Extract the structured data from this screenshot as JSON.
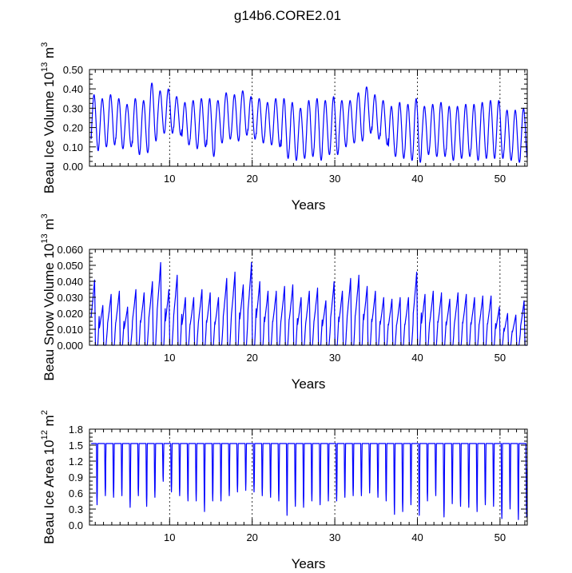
{
  "title": "g14b6.CORE2.01",
  "chart_data": [
    {
      "type": "line",
      "name": "ice-volume",
      "title": "",
      "xlabel": "Years",
      "ylabel": "Beau Ice Volume 10",
      "ylabel_exponent": "13",
      "ylabel_unit": "m",
      "ylabel_unit_exponent": "3",
      "xlim": [
        0.3,
        53.3
      ],
      "ylim": [
        0,
        0.5
      ],
      "xticks": [
        10,
        20,
        30,
        40,
        50
      ],
      "xtick_labels": [
        "10",
        "20",
        "30",
        "40",
        "50"
      ],
      "yticks": [
        0,
        0.1,
        0.2,
        0.3,
        0.4,
        0.5
      ],
      "ytick_labels": [
        "0.00",
        "0.10",
        "0.20",
        "0.30",
        "0.40",
        "0.50"
      ],
      "vertical_dashed_lines": [
        10,
        20,
        30,
        40,
        50
      ],
      "series_color": "#0000ff",
      "seasonal_shape": "volume",
      "annual_max": [
        0.37,
        0.35,
        0.37,
        0.35,
        0.32,
        0.35,
        0.34,
        0.43,
        0.39,
        0.4,
        0.36,
        0.33,
        0.34,
        0.35,
        0.35,
        0.34,
        0.38,
        0.37,
        0.39,
        0.36,
        0.35,
        0.33,
        0.35,
        0.35,
        0.33,
        0.3,
        0.34,
        0.35,
        0.34,
        0.36,
        0.34,
        0.34,
        0.38,
        0.41,
        0.37,
        0.34,
        0.31,
        0.33,
        0.32,
        0.35,
        0.31,
        0.32,
        0.33,
        0.31,
        0.31,
        0.32,
        0.32,
        0.33,
        0.34,
        0.34,
        0.29,
        0.29,
        0.3
      ],
      "annual_min": [
        0.08,
        0.1,
        0.11,
        0.09,
        0.1,
        0.06,
        0.07,
        0.13,
        0.17,
        0.17,
        0.16,
        0.11,
        0.09,
        0.1,
        0.05,
        0.12,
        0.14,
        0.13,
        0.16,
        0.14,
        0.12,
        0.11,
        0.1,
        0.04,
        0.03,
        0.04,
        0.05,
        0.03,
        0.06,
        0.06,
        0.1,
        0.12,
        0.13,
        0.17,
        0.14,
        0.11,
        0.05,
        0.04,
        0.03,
        0.02,
        0.06,
        0.05,
        0.05,
        0.03,
        0.04,
        0.05,
        0.03,
        0.04,
        0.04,
        0.04,
        0.03,
        0.02,
        0.03
      ]
    },
    {
      "type": "line",
      "name": "snow-volume",
      "title": "",
      "xlabel": "Years",
      "ylabel": "Beau Snow Volume 10",
      "ylabel_exponent": "13",
      "ylabel_unit": "m",
      "ylabel_unit_exponent": "3",
      "xlim": [
        0.3,
        53.3
      ],
      "ylim": [
        0,
        0.06
      ],
      "xticks": [
        10,
        20,
        30,
        40,
        50
      ],
      "xtick_labels": [
        "10",
        "20",
        "30",
        "40",
        "50"
      ],
      "yticks": [
        0,
        0.01,
        0.02,
        0.03,
        0.04,
        0.05,
        0.06
      ],
      "ytick_labels": [
        "0.000",
        "0.010",
        "0.020",
        "0.030",
        "0.040",
        "0.050",
        "0.060"
      ],
      "vertical_dashed_lines": [
        10,
        20,
        30,
        40,
        50
      ],
      "series_color": "#0000ff",
      "seasonal_shape": "snow",
      "annual_max": [
        0.041,
        0.025,
        0.032,
        0.034,
        0.024,
        0.035,
        0.033,
        0.04,
        0.052,
        0.035,
        0.044,
        0.03,
        0.03,
        0.035,
        0.033,
        0.03,
        0.042,
        0.046,
        0.038,
        0.052,
        0.04,
        0.034,
        0.034,
        0.037,
        0.038,
        0.03,
        0.034,
        0.036,
        0.028,
        0.04,
        0.034,
        0.042,
        0.044,
        0.037,
        0.034,
        0.03,
        0.029,
        0.03,
        0.03,
        0.046,
        0.032,
        0.034,
        0.033,
        0.029,
        0.033,
        0.032,
        0.03,
        0.031,
        0.031,
        0.024,
        0.02,
        0.019,
        0.028
      ],
      "annual_min": [
        0,
        0,
        0,
        0,
        0,
        0,
        0,
        0,
        0,
        0,
        0,
        0,
        0,
        0,
        0,
        0,
        0,
        0,
        0,
        0,
        0,
        0,
        0,
        0,
        0,
        0,
        0,
        0,
        0,
        0,
        0,
        0,
        0,
        0,
        0,
        0,
        0,
        0,
        0,
        0,
        0,
        0,
        0,
        0,
        0,
        0,
        0,
        0,
        0,
        0,
        0,
        0,
        0
      ]
    },
    {
      "type": "line",
      "name": "ice-area",
      "title": "",
      "xlabel": "Years",
      "ylabel": "Beau Ice Area 10",
      "ylabel_exponent": "12",
      "ylabel_unit": "m",
      "ylabel_unit_exponent": "2",
      "xlim": [
        0.3,
        53.3
      ],
      "ylim": [
        0,
        1.8
      ],
      "xticks": [
        10,
        20,
        30,
        40,
        50
      ],
      "xtick_labels": [
        "10",
        "20",
        "30",
        "40",
        "50"
      ],
      "yticks": [
        0,
        0.3,
        0.6,
        0.9,
        1.2,
        1.5,
        1.8
      ],
      "ytick_labels": [
        "0.0",
        "0.3",
        "0.6",
        "0.9",
        "1.2",
        "1.5",
        "1.8"
      ],
      "vertical_dashed_lines": [
        10,
        20,
        30,
        40,
        50
      ],
      "series_color": "#0000ff",
      "seasonal_shape": "area",
      "annual_max": [
        1.53,
        1.53,
        1.53,
        1.53,
        1.53,
        1.53,
        1.53,
        1.53,
        1.53,
        1.53,
        1.53,
        1.53,
        1.53,
        1.53,
        1.53,
        1.53,
        1.53,
        1.53,
        1.53,
        1.53,
        1.53,
        1.53,
        1.53,
        1.53,
        1.53,
        1.53,
        1.53,
        1.53,
        1.53,
        1.53,
        1.53,
        1.53,
        1.53,
        1.53,
        1.53,
        1.53,
        1.53,
        1.53,
        1.53,
        1.53,
        1.53,
        1.53,
        1.53,
        1.53,
        1.53,
        1.53,
        1.53,
        1.53,
        1.53,
        1.53,
        1.53,
        1.53,
        1.53
      ],
      "annual_min": [
        0.38,
        0.55,
        0.52,
        0.55,
        0.33,
        0.55,
        0.35,
        0.52,
        0.82,
        0.62,
        0.55,
        0.45,
        0.45,
        0.25,
        0.45,
        0.45,
        0.55,
        0.62,
        0.65,
        0.62,
        0.55,
        0.52,
        0.45,
        0.18,
        0.35,
        0.33,
        0.45,
        0.38,
        0.45,
        0.45,
        0.52,
        0.55,
        0.55,
        0.6,
        0.52,
        0.45,
        0.2,
        0.25,
        0.38,
        0.18,
        0.45,
        0.55,
        0.15,
        0.4,
        0.35,
        0.33,
        0.25,
        0.38,
        0.35,
        0.12,
        0.3,
        0.1,
        0.15
      ]
    }
  ]
}
